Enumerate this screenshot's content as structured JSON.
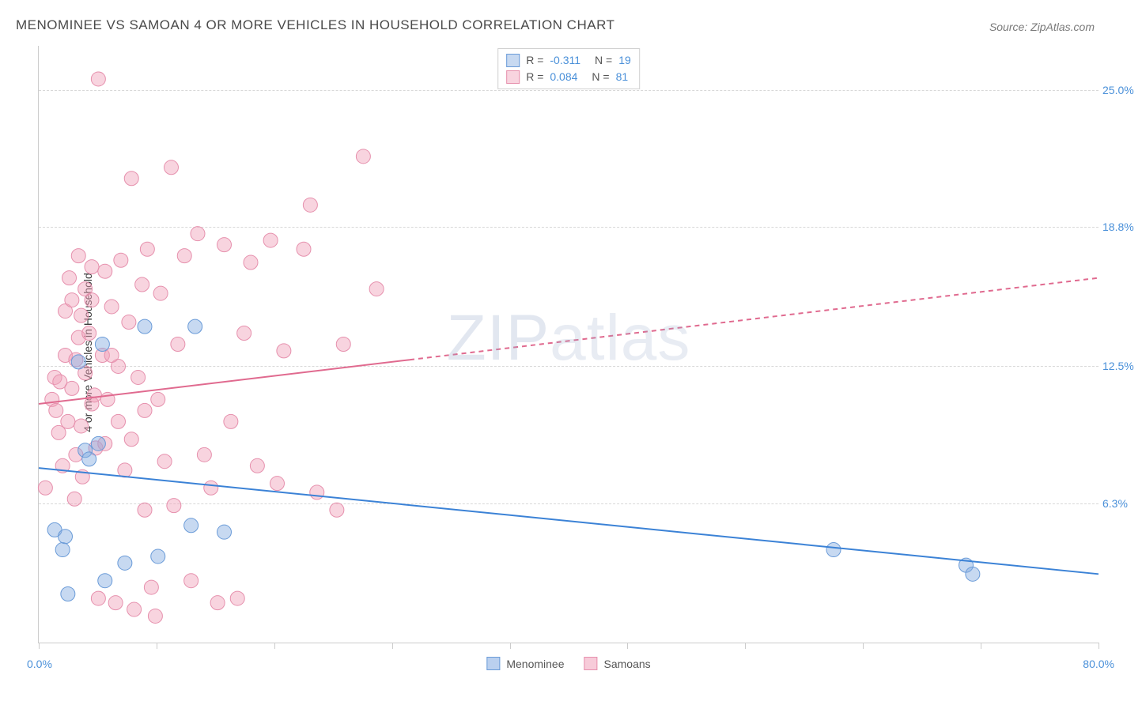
{
  "title": "MENOMINEE VS SAMOAN 4 OR MORE VEHICLES IN HOUSEHOLD CORRELATION CHART",
  "source": "Source: ZipAtlas.com",
  "watermark": "ZIPatlas",
  "chart": {
    "type": "scatter",
    "ylabel": "4 or more Vehicles in Household",
    "xlim": [
      0,
      80
    ],
    "ylim": [
      0,
      27
    ],
    "x_min_label": "0.0%",
    "x_max_label": "80.0%",
    "ytick_labels": [
      "6.3%",
      "12.5%",
      "18.8%",
      "25.0%"
    ],
    "ytick_values": [
      6.3,
      12.5,
      18.8,
      25.0
    ],
    "xtick_positions": [
      0,
      8.9,
      17.8,
      26.7,
      35.6,
      44.4,
      53.3,
      62.2,
      71.1,
      80
    ],
    "grid_color": "#d8d8d8",
    "axis_color": "#cccccc",
    "label_fontsize": 14,
    "tick_color": "#4a90d9",
    "background_color": "#ffffff",
    "marker_radius": 9,
    "marker_opacity": 0.55,
    "series": [
      {
        "name": "Menominee",
        "color_fill": "rgba(130,170,225,0.45)",
        "color_stroke": "#6a9bd8",
        "r_value": "-0.311",
        "n_value": "19",
        "line": {
          "x1": 0,
          "y1": 7.9,
          "x2": 80,
          "y2": 3.1,
          "dash_after_x": null,
          "stroke": "#3b82d6",
          "width": 2
        },
        "points": [
          [
            1.2,
            5.1
          ],
          [
            1.8,
            4.2
          ],
          [
            2.0,
            4.8
          ],
          [
            2.2,
            2.2
          ],
          [
            3.0,
            12.7
          ],
          [
            3.5,
            8.7
          ],
          [
            3.8,
            8.3
          ],
          [
            4.5,
            9.0
          ],
          [
            4.8,
            13.5
          ],
          [
            5.0,
            2.8
          ],
          [
            6.5,
            3.6
          ],
          [
            8.0,
            14.3
          ],
          [
            9.0,
            3.9
          ],
          [
            11.5,
            5.3
          ],
          [
            11.8,
            14.3
          ],
          [
            14.0,
            5.0
          ],
          [
            60.0,
            4.2
          ],
          [
            70.0,
            3.5
          ],
          [
            70.5,
            3.1
          ]
        ]
      },
      {
        "name": "Samoans",
        "color_fill": "rgba(240,160,185,0.45)",
        "color_stroke": "#e690ad",
        "r_value": "0.084",
        "n_value": "81",
        "line": {
          "x1": 0,
          "y1": 10.8,
          "x2": 80,
          "y2": 16.5,
          "dash_after_x": 28,
          "stroke": "#e06a8f",
          "width": 2
        },
        "points": [
          [
            0.5,
            7.0
          ],
          [
            1.0,
            11.0
          ],
          [
            1.2,
            12.0
          ],
          [
            1.3,
            10.5
          ],
          [
            1.5,
            9.5
          ],
          [
            1.6,
            11.8
          ],
          [
            1.8,
            8.0
          ],
          [
            2.0,
            13.0
          ],
          [
            2.0,
            15.0
          ],
          [
            2.2,
            10.0
          ],
          [
            2.3,
            16.5
          ],
          [
            2.5,
            15.5
          ],
          [
            2.5,
            11.5
          ],
          [
            2.7,
            6.5
          ],
          [
            2.8,
            8.5
          ],
          [
            3.0,
            13.8
          ],
          [
            3.0,
            17.5
          ],
          [
            3.2,
            9.8
          ],
          [
            3.3,
            7.5
          ],
          [
            3.5,
            12.2
          ],
          [
            3.5,
            16.0
          ],
          [
            3.8,
            14.0
          ],
          [
            4.0,
            10.8
          ],
          [
            4.0,
            17.0
          ],
          [
            4.2,
            11.2
          ],
          [
            4.3,
            8.8
          ],
          [
            4.5,
            2.0
          ],
          [
            4.5,
            25.5
          ],
          [
            4.8,
            13.0
          ],
          [
            5.0,
            9.0
          ],
          [
            5.0,
            16.8
          ],
          [
            5.2,
            11.0
          ],
          [
            5.5,
            15.2
          ],
          [
            5.8,
            1.8
          ],
          [
            6.0,
            12.5
          ],
          [
            6.0,
            10.0
          ],
          [
            6.2,
            17.3
          ],
          [
            6.5,
            7.8
          ],
          [
            6.8,
            14.5
          ],
          [
            7.0,
            9.2
          ],
          [
            7.0,
            21.0
          ],
          [
            7.2,
            1.5
          ],
          [
            7.5,
            12.0
          ],
          [
            7.8,
            16.2
          ],
          [
            8.0,
            10.5
          ],
          [
            8.0,
            6.0
          ],
          [
            8.2,
            17.8
          ],
          [
            8.5,
            2.5
          ],
          [
            8.8,
            1.2
          ],
          [
            9.0,
            11.0
          ],
          [
            9.2,
            15.8
          ],
          [
            9.5,
            8.2
          ],
          [
            10.0,
            21.5
          ],
          [
            10.2,
            6.2
          ],
          [
            10.5,
            13.5
          ],
          [
            11.0,
            17.5
          ],
          [
            11.5,
            2.8
          ],
          [
            12.0,
            18.5
          ],
          [
            12.5,
            8.5
          ],
          [
            13.0,
            7.0
          ],
          [
            13.5,
            1.8
          ],
          [
            14.0,
            18.0
          ],
          [
            14.5,
            10.0
          ],
          [
            15.0,
            2.0
          ],
          [
            15.5,
            14.0
          ],
          [
            16.0,
            17.2
          ],
          [
            16.5,
            8.0
          ],
          [
            17.5,
            18.2
          ],
          [
            18.0,
            7.2
          ],
          [
            18.5,
            13.2
          ],
          [
            20.0,
            17.8
          ],
          [
            20.5,
            19.8
          ],
          [
            21.0,
            6.8
          ],
          [
            22.5,
            6.0
          ],
          [
            23.0,
            13.5
          ],
          [
            24.5,
            22.0
          ],
          [
            25.5,
            16.0
          ],
          [
            4.0,
            15.5
          ],
          [
            3.2,
            14.8
          ],
          [
            2.8,
            12.8
          ],
          [
            5.5,
            13.0
          ]
        ]
      }
    ],
    "legend_bottom": [
      {
        "label": "Menominee",
        "swatch_fill": "rgba(130,170,225,0.55)",
        "swatch_stroke": "#6a9bd8"
      },
      {
        "label": "Samoans",
        "swatch_fill": "rgba(240,160,185,0.55)",
        "swatch_stroke": "#e690ad"
      }
    ]
  }
}
